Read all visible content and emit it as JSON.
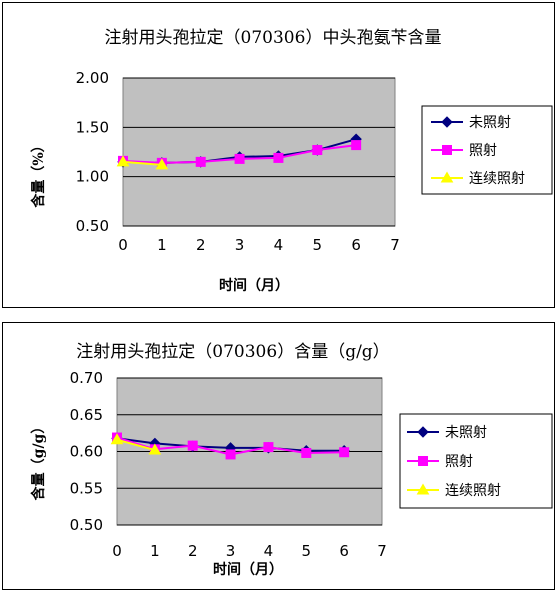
{
  "colors": {
    "plot_bg": "#c0c0c0",
    "series": [
      "#000080",
      "#ff00ff",
      "#ffff00"
    ]
  },
  "chart_data": [
    {
      "type": "line",
      "title": "注射用头孢拉定（070306）中头孢氨苄含量",
      "xlabel": "时间（月）",
      "ylabel": "含量（%）",
      "x_ticks": [
        "0",
        "1",
        "2",
        "3",
        "4",
        "5",
        "6",
        "7"
      ],
      "y_ticks": [
        "2.00",
        "1.50",
        "1.00",
        "0.50"
      ],
      "xlim": [
        0,
        7
      ],
      "ylim": [
        0.5,
        2.0
      ],
      "grid": "horizontal",
      "legend_position": "right",
      "series": [
        {
          "name": "未照射",
          "x": [
            0,
            1,
            2,
            3,
            4,
            5,
            6
          ],
          "values": [
            1.15,
            1.14,
            1.15,
            1.2,
            1.21,
            1.27,
            1.38
          ]
        },
        {
          "name": "照射",
          "x": [
            0,
            1,
            2,
            3,
            4,
            5,
            6
          ],
          "values": [
            1.16,
            1.14,
            1.15,
            1.18,
            1.19,
            1.27,
            1.32
          ]
        },
        {
          "name": "连续照射",
          "x": [
            0,
            1
          ],
          "values": [
            1.15,
            1.12
          ]
        }
      ]
    },
    {
      "type": "line",
      "title": "注射用头孢拉定（070306）含量（g/g）",
      "xlabel": "时间（月）",
      "ylabel": "含量（g/g）",
      "x_ticks": [
        "0",
        "1",
        "2",
        "3",
        "4",
        "5",
        "6",
        "7"
      ],
      "y_ticks": [
        "0.70",
        "0.65",
        "0.60",
        "0.55",
        "0.50"
      ],
      "xlim": [
        0,
        7
      ],
      "ylim": [
        0.5,
        0.7
      ],
      "grid": "horizontal",
      "legend_position": "right",
      "series": [
        {
          "name": "未照射",
          "x": [
            0,
            1,
            2,
            3,
            4,
            5,
            6
          ],
          "values": [
            0.618,
            0.611,
            0.607,
            0.605,
            0.605,
            0.601,
            0.601
          ]
        },
        {
          "name": "照射",
          "x": [
            0,
            1,
            2,
            3,
            4,
            5,
            6
          ],
          "values": [
            0.619,
            0.603,
            0.608,
            0.596,
            0.606,
            0.598,
            0.599
          ]
        },
        {
          "name": "连续照射",
          "x": [
            0,
            1
          ],
          "values": [
            0.616,
            0.602
          ]
        }
      ]
    }
  ]
}
